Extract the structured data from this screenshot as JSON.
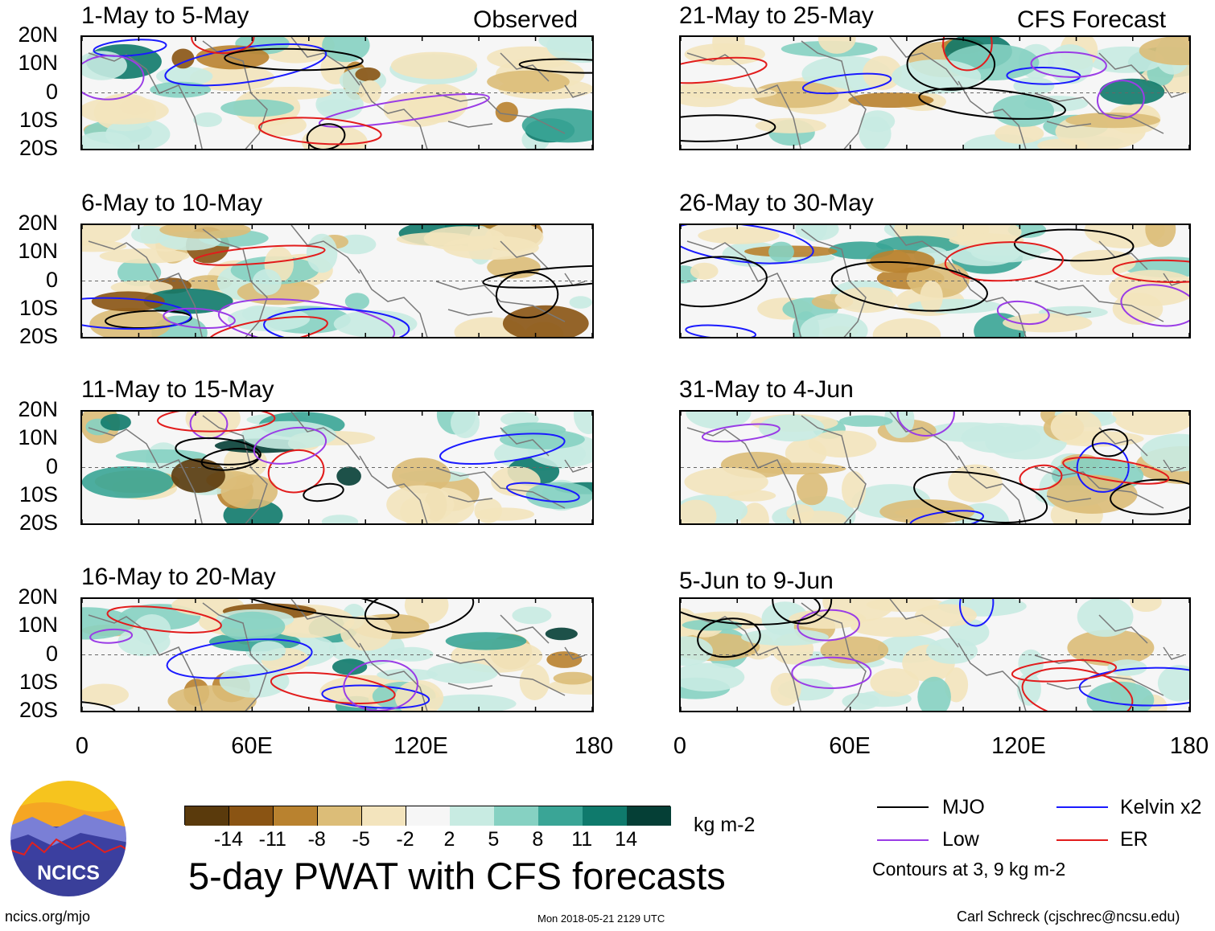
{
  "header": {
    "observed_label": "Observed",
    "forecast_label": "CFS Forecast"
  },
  "panels": [
    {
      "title": "1-May to 5-May"
    },
    {
      "title": "6-May to 10-May"
    },
    {
      "title": "11-May to 15-May"
    },
    {
      "title": "16-May to 20-May"
    },
    {
      "title": "21-May to 25-May"
    },
    {
      "title": "26-May to 30-May"
    },
    {
      "title": "31-May to 4-Jun"
    },
    {
      "title": "5-Jun to 9-Jun"
    }
  ],
  "lat_labels": [
    "20N",
    "10N",
    "0",
    "10S",
    "20S"
  ],
  "lon_labels": [
    "0",
    "60E",
    "120E",
    "180"
  ],
  "colorbar": {
    "ticks": [
      "-14",
      "-11",
      "-8",
      "-5",
      "-2",
      "2",
      "5",
      "8",
      "11",
      "14"
    ],
    "units": "kg m-2",
    "colors": [
      "#5a3a0c",
      "#8a5413",
      "#b9822f",
      "#dcbd78",
      "#f3e4bd",
      "#f6f6f6",
      "#c8ebe2",
      "#86d1c2",
      "#3aa596",
      "#0f7a6c",
      "#053f36"
    ]
  },
  "legend": {
    "items": [
      {
        "label": "MJO",
        "color": "#000000"
      },
      {
        "label": "Kelvin x2",
        "color": "#1a1aff"
      },
      {
        "label": "Low",
        "color": "#9a3ce6"
      },
      {
        "label": "ER",
        "color": "#e21c1c"
      }
    ],
    "contours_note": "Contours at 3, 9 kg m-2"
  },
  "footer": {
    "main_title": "5-day PWAT with CFS forecasts",
    "url": "ncics.org/mjo",
    "timestamp": "Mon 2018-05-21 2129 UTC",
    "credit": "Carl Schreck (cjschrec@ncsu.edu)",
    "logo_text": "NCICS"
  }
}
